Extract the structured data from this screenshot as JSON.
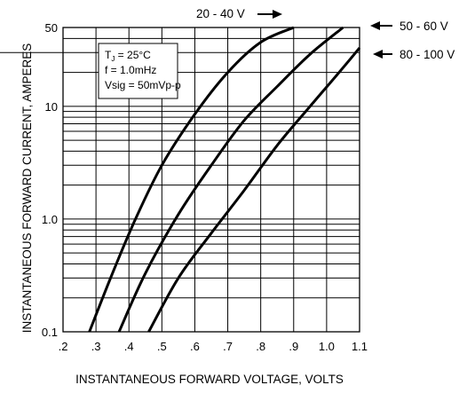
{
  "chart_data": {
    "type": "line",
    "title": "",
    "xlabel": "INSTANTANEOUS FORWARD VOLTAGE, VOLTS",
    "ylabel": "INSTANTANEOUS FORWARD CURRENT, AMPERES",
    "xlim": [
      0.2,
      1.1
    ],
    "ylim": [
      0.1,
      50
    ],
    "yscale": "log",
    "grid": true,
    "x_tick_labels": [
      ".2",
      ".3",
      ".4",
      ".5",
      ".6",
      ".7",
      ".8",
      ".9",
      "1.0",
      "1.1"
    ],
    "y_tick_labels": [
      "0.1",
      "1.0",
      "10",
      "50"
    ],
    "conditions": {
      "tj_label": "T",
      "tj_sub": "J",
      "tj_value": " = 25°C",
      "freq": "f = 1.0mHz",
      "vsig": "Vsig = 50mVp-p"
    },
    "series": [
      {
        "name": "20 - 40 V",
        "x": [
          0.28,
          0.35,
          0.42,
          0.5,
          0.6,
          0.7,
          0.8,
          0.9
        ],
        "y": [
          0.1,
          0.33,
          1.0,
          3.0,
          8.5,
          20,
          37,
          50
        ]
      },
      {
        "name": "50 - 60 V",
        "x": [
          0.37,
          0.45,
          0.55,
          0.65,
          0.75,
          0.85,
          0.95,
          1.05
        ],
        "y": [
          0.1,
          0.33,
          1.1,
          3.0,
          7.5,
          15,
          29,
          50
        ]
      },
      {
        "name": "80 - 100 V",
        "x": [
          0.46,
          0.55,
          0.65,
          0.75,
          0.85,
          0.95,
          1.05,
          1.1
        ],
        "y": [
          0.1,
          0.3,
          0.75,
          1.8,
          4.5,
          10,
          22,
          33
        ]
      }
    ]
  }
}
